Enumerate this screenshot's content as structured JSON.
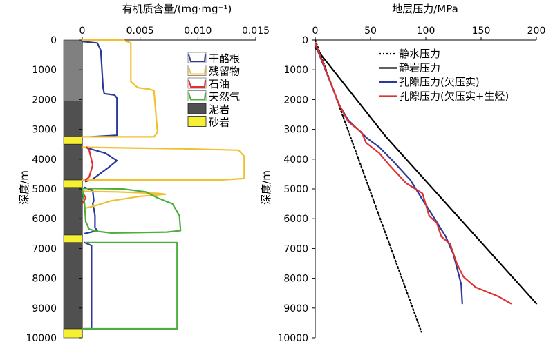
{
  "chart_data": [
    {
      "type": "line",
      "title": "有机质含量/(mg·mg⁻¹)",
      "ylabel": "深度/m",
      "xlim": [
        0,
        0.015
      ],
      "ylim": [
        0,
        10000
      ],
      "y_inverted": true,
      "x_axis_position": "top",
      "x_ticks": [
        0,
        0.005,
        0.01,
        0.015
      ],
      "x_tick_labels": [
        "0",
        "0.005",
        "0.010",
        "0.015"
      ],
      "y_ticks": [
        0,
        1000,
        2000,
        3000,
        4000,
        5000,
        6000,
        7000,
        8000,
        9000,
        10000
      ],
      "y_tick_labels": [
        "0",
        "1000",
        "2000",
        "3000",
        "4000",
        "5000",
        "6000",
        "7000",
        "8000",
        "9000",
        "10000"
      ],
      "legend_position": "top-right",
      "legend": [
        {
          "label": "干酪根",
          "color": "#2b3a9a",
          "kind": "line"
        },
        {
          "label": "残留物",
          "color": "#f0c030",
          "kind": "line"
        },
        {
          "label": "石油",
          "color": "#e03030",
          "kind": "line"
        },
        {
          "label": "天然气",
          "color": "#4caf3c",
          "kind": "line"
        },
        {
          "label": "泥岩",
          "color": "#505050",
          "kind": "box"
        },
        {
          "label": "砂岩",
          "color": "#f5f033",
          "kind": "box"
        }
      ],
      "lithology_column": [
        {
          "lithology": "泥岩",
          "top": 0,
          "bottom": 2050,
          "color": "#808080"
        },
        {
          "lithology": "泥岩",
          "top": 2050,
          "bottom": 3250,
          "color": "#505050"
        },
        {
          "lithology": "砂岩",
          "top": 3250,
          "bottom": 3500,
          "color": "#f5f033"
        },
        {
          "lithology": "泥岩",
          "top": 3500,
          "bottom": 4700,
          "color": "#505050"
        },
        {
          "lithology": "砂岩",
          "top": 4700,
          "bottom": 4950,
          "color": "#f5f033"
        },
        {
          "lithology": "泥岩",
          "top": 4950,
          "bottom": 6550,
          "color": "#505050"
        },
        {
          "lithology": "砂岩",
          "top": 6550,
          "bottom": 6800,
          "color": "#f5f033"
        },
        {
          "lithology": "泥岩",
          "top": 6800,
          "bottom": 9700,
          "color": "#505050"
        },
        {
          "lithology": "砂岩",
          "top": 9700,
          "bottom": 10000,
          "color": "#f5f033"
        }
      ],
      "series": [
        {
          "name": "干酪根",
          "color": "#2b3a9a",
          "points": [
            [
              0,
              50
            ],
            [
              0.0013,
              100
            ],
            [
              0.0016,
              350
            ],
            [
              0.0018,
              1600
            ],
            [
              0.0019,
              1800
            ],
            [
              0.0028,
              1850
            ],
            [
              0.003,
              1950
            ],
            [
              0.003,
              3200
            ],
            [
              0.0008,
              3250
            ],
            null,
            [
              0.0002,
              3600
            ],
            [
              0.002,
              3800
            ],
            [
              0.003,
              4050
            ],
            [
              0.0022,
              4300
            ],
            [
              0.0015,
              4500
            ],
            [
              0.0008,
              4700
            ],
            [
              0.0003,
              4750
            ],
            null,
            [
              0.0002,
              4950
            ],
            [
              0.0009,
              5050
            ],
            [
              0.001,
              5400
            ],
            [
              0.0009,
              5500
            ],
            [
              0.001,
              5650
            ],
            [
              0.0011,
              5900
            ],
            [
              0.0011,
              6300
            ],
            [
              0.0013,
              6400
            ],
            [
              0.0002,
              6500
            ],
            null,
            [
              0.0002,
              6800
            ],
            [
              0.0008,
              6900
            ],
            [
              0.0008,
              9500
            ],
            [
              0.0008,
              9700
            ],
            [
              0.0002,
              9700
            ]
          ]
        },
        {
          "name": "残留物",
          "color": "#f0c030",
          "points": [
            [
              0,
              0
            ],
            [
              0.0035,
              0
            ],
            [
              0.0042,
              100
            ],
            [
              0.0042,
              1400
            ],
            [
              0.0048,
              1600
            ],
            [
              0.0058,
              1650
            ],
            [
              0.0062,
              1700
            ],
            [
              0.0065,
              3100
            ],
            [
              0.0062,
              3250
            ],
            [
              0,
              3250
            ],
            null,
            [
              0,
              3600
            ],
            [
              0.0085,
              3650
            ],
            [
              0.0135,
              3700
            ],
            [
              0.014,
              3900
            ],
            [
              0.014,
              4650
            ],
            [
              0.012,
              4700
            ],
            [
              0,
              4700
            ],
            null,
            [
              0,
              5080
            ],
            [
              0.003,
              5100
            ],
            [
              0.0065,
              5150
            ],
            [
              0.0072,
              5180
            ],
            [
              0.005,
              5250
            ],
            [
              0.0025,
              5400
            ],
            [
              0.0008,
              5600
            ],
            [
              0.0002,
              5650
            ]
          ]
        },
        {
          "name": "石油",
          "color": "#e03030",
          "points": [
            [
              0.0004,
              3600
            ],
            [
              0.0006,
              3700
            ],
            [
              0.0009,
              4200
            ],
            [
              0.0006,
              4600
            ],
            [
              0.0003,
              4700
            ],
            null,
            [
              0,
              5100
            ],
            [
              0.0003,
              5300
            ],
            [
              0,
              5500
            ]
          ]
        },
        {
          "name": "天然气",
          "color": "#4caf3c",
          "points": [
            [
              0,
              4980
            ],
            [
              0.0035,
              5000
            ],
            [
              0.0055,
              5100
            ],
            [
              0.0065,
              5300
            ],
            [
              0.0078,
              5500
            ],
            [
              0.0084,
              5900
            ],
            [
              0.0085,
              6400
            ],
            [
              0.0073,
              6450
            ],
            [
              0.0025,
              6480
            ],
            [
              0.0012,
              6420
            ],
            [
              0.0006,
              6350
            ],
            [
              0.0003,
              6100
            ],
            [
              0.0002,
              5500
            ],
            [
              0,
              5000
            ],
            null,
            [
              0.0003,
              6800
            ],
            [
              0.0082,
              6800
            ],
            [
              0.0082,
              9700
            ],
            [
              0,
              9700
            ]
          ]
        }
      ]
    },
    {
      "type": "line",
      "title": "地层压力/MPa",
      "ylabel": "深度/m",
      "xlim": [
        0,
        200
      ],
      "ylim": [
        0,
        10000
      ],
      "y_inverted": true,
      "x_axis_position": "top",
      "x_ticks": [
        0,
        50,
        100,
        150,
        200
      ],
      "x_tick_labels": [
        "0",
        "50",
        "100",
        "150",
        "200"
      ],
      "y_ticks": [
        0,
        1000,
        2000,
        3000,
        4000,
        5000,
        6000,
        7000,
        8000,
        9000,
        10000
      ],
      "y_tick_labels": [
        "0",
        "1000",
        "2000",
        "3000",
        "4000",
        "5000",
        "6000",
        "7000",
        "8000",
        "9000",
        "10000"
      ],
      "legend_position": "top-right",
      "series": [
        {
          "name": "静水压力",
          "color": "#000000",
          "dash": "2,3",
          "points": [
            [
              0,
              0
            ],
            [
              96,
              9800
            ]
          ]
        },
        {
          "name": "静岩压力",
          "color": "#000000",
          "points": [
            [
              0,
              250
            ],
            [
              64,
              3250
            ],
            [
              200,
              8850
            ]
          ]
        },
        {
          "name": "孔隙压力(欠压实)",
          "color": "#2b3a9a",
          "points": [
            [
              0,
              150
            ],
            [
              22,
              2200
            ],
            [
              30,
              2700
            ],
            [
              40,
              3050
            ],
            [
              47,
              3300
            ],
            [
              58,
              3600
            ],
            [
              70,
              4050
            ],
            [
              86,
              4700
            ],
            [
              96,
              5300
            ],
            [
              108,
              6000
            ],
            [
              118,
              6600
            ],
            [
              125,
              7200
            ],
            [
              132,
              8200
            ],
            [
              133,
              8850
            ]
          ]
        },
        {
          "name": "孔隙压力(欠压实+生烃)",
          "color": "#e03030",
          "points": [
            [
              0,
              100
            ],
            [
              22,
              2200
            ],
            [
              30,
              2750
            ],
            [
              42,
              3100
            ],
            [
              46,
              3450
            ],
            [
              58,
              3800
            ],
            [
              67,
              4200
            ],
            [
              82,
              4800
            ],
            [
              97,
              5150
            ],
            [
              103,
              5900
            ],
            [
              110,
              6150
            ],
            [
              114,
              6600
            ],
            [
              122,
              6850
            ],
            [
              128,
              7500
            ],
            [
              134,
              7950
            ],
            [
              145,
              8300
            ],
            [
              165,
              8600
            ],
            [
              177,
              8850
            ]
          ]
        }
      ]
    }
  ]
}
